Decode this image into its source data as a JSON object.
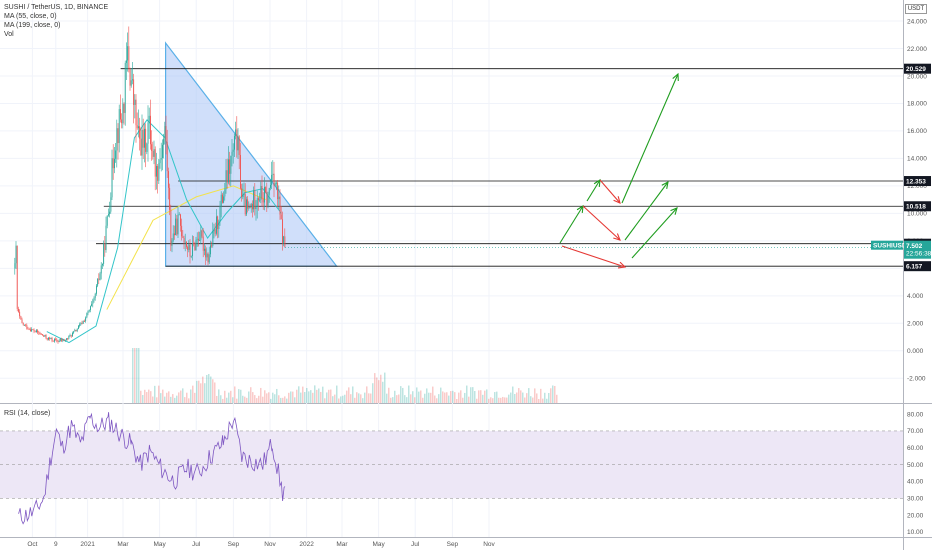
{
  "header": {
    "symbol_line": "SUSHI / TetherUS, 1D, BINANCE",
    "ma1": "MA (55, close, 0)",
    "ma2": "MA (199, close, 0)",
    "vol": "Vol",
    "currency": "USDT"
  },
  "rsi_panel": {
    "label": "RSI (14, close)"
  },
  "colors": {
    "up": "#26a69a",
    "down": "#ef5350",
    "ma55": "#33c5c9",
    "ma199": "#f3e24a",
    "triangle_fill": "#a9c4f5",
    "triangle_edge": "#5ab0e8",
    "arrow_up": "#1f9d1f",
    "arrow_down": "#e53935",
    "rsi_line": "#7e57c2",
    "rsi_band": "#ede7f6",
    "price_tag": "#26a69a"
  },
  "chart_data": [
    {
      "type": "candlestick",
      "title": "SUSHI / TetherUS, 1D, BINANCE",
      "x_tick_labels": [
        "Oct",
        "9",
        "2021",
        "Mar",
        "May",
        "Jul",
        "Sep",
        "Nov",
        "2022",
        "Mar",
        "May",
        "Jul",
        "Sep",
        "Nov"
      ],
      "y_tick_labels": [
        "24.000",
        "22.000",
        "20.000",
        "18.000",
        "16.000",
        "14.000",
        "12.000",
        "10.000",
        "8.000",
        "6.000",
        "4.000",
        "2.000",
        "0.000",
        "-2.000"
      ],
      "ylim": [
        -3.8,
        24.8
      ],
      "grid": true,
      "price_series_approx": [
        [
          "2020-09-01",
          6.0
        ],
        [
          "2020-09-02",
          9.5
        ],
        [
          "2020-09-05",
          3.0
        ],
        [
          "2020-09-12",
          2.0
        ],
        [
          "2020-09-25",
          1.6
        ],
        [
          "2020-10-10",
          1.3
        ],
        [
          "2020-10-25",
          0.9
        ],
        [
          "2020-11-10",
          0.7
        ],
        [
          "2020-11-25",
          0.8
        ],
        [
          "2020-12-10",
          1.4
        ],
        [
          "2020-12-25",
          2.2
        ],
        [
          "2021-01-10",
          3.5
        ],
        [
          "2021-01-25",
          6.5
        ],
        [
          "2021-02-05",
          10.5
        ],
        [
          "2021-02-15",
          15.5
        ],
        [
          "2021-02-28",
          17.5
        ],
        [
          "2021-03-08",
          21.5
        ],
        [
          "2021-03-13",
          20.0
        ],
        [
          "2021-03-25",
          15.5
        ],
        [
          "2021-04-05",
          15.0
        ],
        [
          "2021-04-12",
          16.5
        ],
        [
          "2021-04-25",
          13.0
        ],
        [
          "2021-05-10",
          16.0
        ],
        [
          "2021-05-19",
          8.0
        ],
        [
          "2021-06-01",
          9.5
        ],
        [
          "2021-06-20",
          7.0
        ],
        [
          "2021-07-05",
          8.5
        ],
        [
          "2021-07-20",
          6.8
        ],
        [
          "2021-08-05",
          9.5
        ],
        [
          "2021-08-20",
          12.5
        ],
        [
          "2021-09-06",
          15.5
        ],
        [
          "2021-09-15",
          11.0
        ],
        [
          "2021-09-25",
          10.0
        ],
        [
          "2021-10-10",
          11.5
        ],
        [
          "2021-10-28",
          11.0
        ],
        [
          "2021-11-05",
          13.5
        ],
        [
          "2021-11-15",
          10.5
        ],
        [
          "2021-11-22",
          8.0
        ],
        [
          "2021-11-26",
          7.502
        ]
      ],
      "annotations": {
        "horizontal_levels": [
          "20.529",
          "12.353",
          "10.518",
          "7.793",
          "6.157"
        ],
        "current_price_label": "SUSHIUSDT",
        "current_price": "7.502",
        "countdown": "22:56:38",
        "pattern": "descending triangle",
        "projection_arrows": "green up / red down scenario arrows"
      }
    },
    {
      "type": "line",
      "title": "RSI (14, close)",
      "y_tick_labels": [
        "80.00",
        "70.00",
        "60.00",
        "50.00",
        "40.00",
        "30.00",
        "20.00",
        "10.00"
      ],
      "ylim": [
        7,
        86
      ],
      "band": [
        30,
        70
      ],
      "values_approx": [
        [
          "2020-09-08",
          19
        ],
        [
          "2020-09-20",
          20
        ],
        [
          "2020-10-05",
          22
        ],
        [
          "2020-10-20",
          30
        ],
        [
          "2020-11-01",
          55
        ],
        [
          "2020-11-10",
          70
        ],
        [
          "2020-11-20",
          60
        ],
        [
          "2020-12-05",
          73
        ],
        [
          "2020-12-20",
          62
        ],
        [
          "2021-01-05",
          78
        ],
        [
          "2021-01-20",
          72
        ],
        [
          "2021-02-05",
          76
        ],
        [
          "2021-02-25",
          68
        ],
        [
          "2021-03-15",
          62
        ],
        [
          "2021-03-30",
          50
        ],
        [
          "2021-04-15",
          58
        ],
        [
          "2021-05-05",
          47
        ],
        [
          "2021-05-25",
          40
        ],
        [
          "2021-06-15",
          48
        ],
        [
          "2021-07-05",
          45
        ],
        [
          "2021-07-25",
          55
        ],
        [
          "2021-08-15",
          63
        ],
        [
          "2021-09-01",
          77
        ],
        [
          "2021-09-15",
          55
        ],
        [
          "2021-10-01",
          52
        ],
        [
          "2021-10-20",
          50
        ],
        [
          "2021-11-05",
          63
        ],
        [
          "2021-11-15",
          45
        ],
        [
          "2021-11-22",
          33
        ],
        [
          "2021-11-26",
          37
        ]
      ]
    }
  ]
}
